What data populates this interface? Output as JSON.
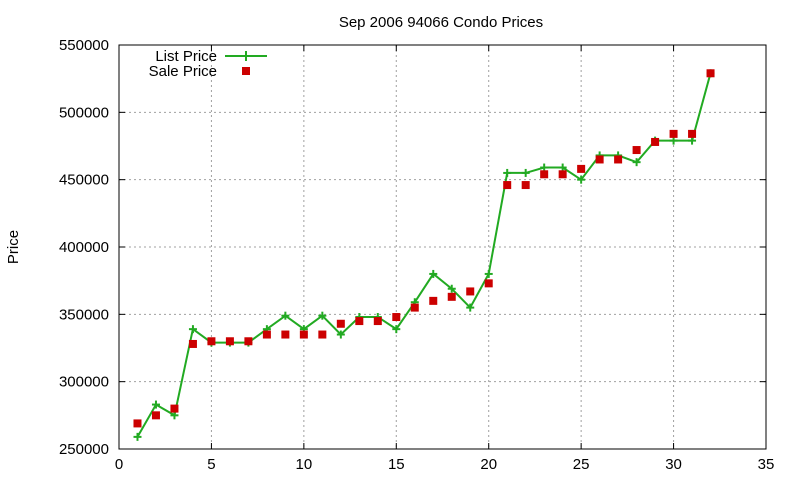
{
  "chart_data": {
    "type": "line",
    "title": "Sep 2006 94066 Condo Prices",
    "xlabel": "",
    "ylabel": "Price",
    "xlim": [
      0,
      35
    ],
    "ylim": [
      250000,
      550000
    ],
    "xticks": [
      0,
      5,
      10,
      15,
      20,
      25,
      30,
      35
    ],
    "yticks": [
      250000,
      300000,
      350000,
      400000,
      450000,
      500000,
      550000
    ],
    "grid": true,
    "legend_position": "top-left",
    "series": [
      {
        "name": "List Price",
        "style": "line+cross",
        "color": "#22aa22",
        "x": [
          1,
          2,
          3,
          4,
          5,
          6,
          7,
          8,
          9,
          10,
          11,
          12,
          13,
          14,
          15,
          16,
          17,
          18,
          19,
          20,
          21,
          22,
          23,
          24,
          25,
          26,
          27,
          28,
          29,
          30,
          31,
          32
        ],
        "y": [
          259000,
          283000,
          275000,
          339000,
          329000,
          329000,
          329000,
          339000,
          349000,
          339000,
          349000,
          335000,
          348000,
          348000,
          339000,
          359000,
          380000,
          369000,
          355000,
          380000,
          455000,
          455000,
          459000,
          459000,
          450000,
          468000,
          468000,
          463000,
          479000,
          479000,
          479000,
          529000
        ]
      },
      {
        "name": "Sale Price",
        "style": "square",
        "color": "#cc0000",
        "x": [
          1,
          2,
          3,
          4,
          5,
          6,
          7,
          8,
          9,
          10,
          11,
          12,
          13,
          14,
          15,
          16,
          17,
          18,
          19,
          20,
          21,
          22,
          23,
          24,
          25,
          26,
          27,
          28,
          29,
          30,
          31,
          32
        ],
        "y": [
          269000,
          275000,
          280000,
          328000,
          330000,
          330000,
          330000,
          335000,
          335000,
          335000,
          335000,
          343000,
          345000,
          345000,
          348000,
          355000,
          360000,
          363000,
          367000,
          373000,
          446000,
          446000,
          454000,
          454000,
          458000,
          465000,
          465000,
          472000,
          478000,
          484000,
          484000,
          529000
        ]
      }
    ]
  }
}
